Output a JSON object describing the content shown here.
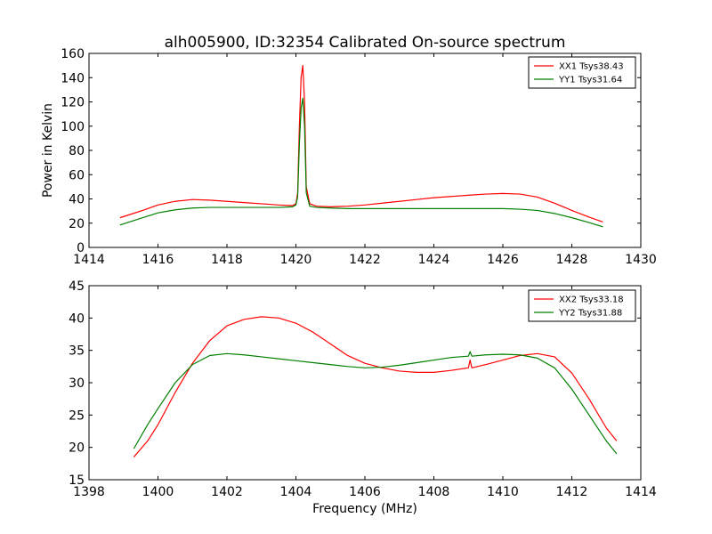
{
  "page_title": "alh005900, ID:32354 Calibrated On-source spectrum",
  "colors": {
    "xx": "#ff0000",
    "yy": "#008000"
  },
  "chart_data": [
    {
      "type": "line",
      "title": "alh005900, ID:32354 Calibrated On-source spectrum",
      "xlabel": "",
      "ylabel": "Power in Kelvin",
      "xlim": [
        1414,
        1430
      ],
      "ylim": [
        0,
        160
      ],
      "xticks": [
        1414,
        1416,
        1418,
        1420,
        1422,
        1424,
        1426,
        1428,
        1430
      ],
      "yticks": [
        0,
        20,
        40,
        60,
        80,
        100,
        120,
        140,
        160
      ],
      "legend_position": "top-right",
      "grid": false,
      "series": [
        {
          "name": "XX1 Tsys38.43",
          "color": "#ff0000",
          "x": [
            1414.9,
            1415.5,
            1416.0,
            1416.5,
            1417.0,
            1417.5,
            1418.0,
            1418.5,
            1419.0,
            1419.5,
            1419.9,
            1420.0,
            1420.05,
            1420.1,
            1420.15,
            1420.2,
            1420.25,
            1420.3,
            1420.4,
            1420.6,
            1421.0,
            1421.5,
            1422.0,
            1422.5,
            1423.0,
            1423.5,
            1424.0,
            1424.5,
            1425.0,
            1425.5,
            1426.0,
            1426.5,
            1427.0,
            1427.5,
            1428.0,
            1428.5,
            1428.9
          ],
          "values": [
            24.5,
            30.0,
            35.0,
            38.0,
            39.5,
            39.0,
            38.0,
            37.0,
            36.0,
            35.0,
            34.5,
            36.0,
            45.0,
            100.0,
            140.0,
            150.0,
            120.0,
            50.0,
            36.0,
            34.0,
            33.5,
            34.0,
            35.0,
            36.5,
            38.0,
            39.5,
            41.0,
            42.0,
            43.0,
            44.0,
            44.5,
            44.0,
            41.5,
            36.5,
            30.5,
            25.0,
            21.0
          ]
        },
        {
          "name": "YY1 Tsys31.64",
          "color": "#008000",
          "x": [
            1414.9,
            1415.5,
            1416.0,
            1416.5,
            1417.0,
            1417.5,
            1418.0,
            1418.5,
            1419.0,
            1419.5,
            1419.9,
            1420.0,
            1420.05,
            1420.1,
            1420.15,
            1420.2,
            1420.25,
            1420.3,
            1420.4,
            1420.6,
            1421.0,
            1421.5,
            1422.0,
            1422.5,
            1423.0,
            1423.5,
            1424.0,
            1424.5,
            1425.0,
            1425.5,
            1426.0,
            1426.5,
            1427.0,
            1427.5,
            1428.0,
            1428.5,
            1428.9
          ],
          "values": [
            18.5,
            24.0,
            28.5,
            31.0,
            32.5,
            33.0,
            33.0,
            33.0,
            33.0,
            33.0,
            33.5,
            35.0,
            42.0,
            85.0,
            115.0,
            123.0,
            100.0,
            45.0,
            34.0,
            33.0,
            32.5,
            32.0,
            32.0,
            32.0,
            32.0,
            32.0,
            32.0,
            32.0,
            32.0,
            32.0,
            32.0,
            31.5,
            30.5,
            28.0,
            24.5,
            20.5,
            17.0
          ]
        }
      ]
    },
    {
      "type": "line",
      "title": "",
      "xlabel": "Frequency (MHz)",
      "ylabel": "",
      "xlim": [
        1398,
        1414
      ],
      "ylim": [
        15,
        45
      ],
      "xticks": [
        1398,
        1400,
        1402,
        1404,
        1406,
        1408,
        1410,
        1412,
        1414
      ],
      "yticks": [
        15,
        20,
        25,
        30,
        35,
        40,
        45
      ],
      "legend_position": "top-right",
      "grid": false,
      "series": [
        {
          "name": "XX2 Tsys33.18",
          "color": "#ff0000",
          "x": [
            1399.3,
            1399.7,
            1400.0,
            1400.5,
            1401.0,
            1401.5,
            1402.0,
            1402.5,
            1403.0,
            1403.5,
            1404.0,
            1404.5,
            1405.0,
            1405.5,
            1406.0,
            1406.5,
            1407.0,
            1407.5,
            1408.0,
            1408.5,
            1409.0,
            1409.05,
            1409.1,
            1409.5,
            1410.0,
            1410.5,
            1411.0,
            1411.5,
            1412.0,
            1412.5,
            1413.0,
            1413.3
          ],
          "values": [
            18.5,
            21.0,
            23.5,
            28.5,
            33.0,
            36.5,
            38.8,
            39.8,
            40.2,
            40.0,
            39.2,
            37.8,
            36.0,
            34.2,
            33.0,
            32.3,
            31.8,
            31.6,
            31.6,
            31.9,
            32.3,
            33.5,
            32.3,
            32.8,
            33.5,
            34.2,
            34.5,
            34.0,
            31.5,
            27.5,
            23.0,
            21.0
          ]
        },
        {
          "name": "YY2 Tsys31.88",
          "color": "#008000",
          "x": [
            1399.3,
            1399.7,
            1400.0,
            1400.5,
            1401.0,
            1401.5,
            1402.0,
            1402.5,
            1403.0,
            1403.5,
            1404.0,
            1404.5,
            1405.0,
            1405.5,
            1406.0,
            1406.5,
            1407.0,
            1407.5,
            1408.0,
            1408.5,
            1409.0,
            1409.05,
            1409.1,
            1409.5,
            1410.0,
            1410.5,
            1411.0,
            1411.5,
            1412.0,
            1412.5,
            1413.0,
            1413.3
          ],
          "values": [
            19.8,
            23.5,
            26.0,
            30.0,
            32.8,
            34.2,
            34.5,
            34.3,
            34.0,
            33.7,
            33.4,
            33.1,
            32.8,
            32.5,
            32.3,
            32.4,
            32.7,
            33.1,
            33.5,
            33.9,
            34.1,
            34.8,
            34.1,
            34.3,
            34.4,
            34.3,
            33.8,
            32.3,
            29.0,
            25.0,
            21.0,
            19.0
          ]
        }
      ]
    }
  ]
}
